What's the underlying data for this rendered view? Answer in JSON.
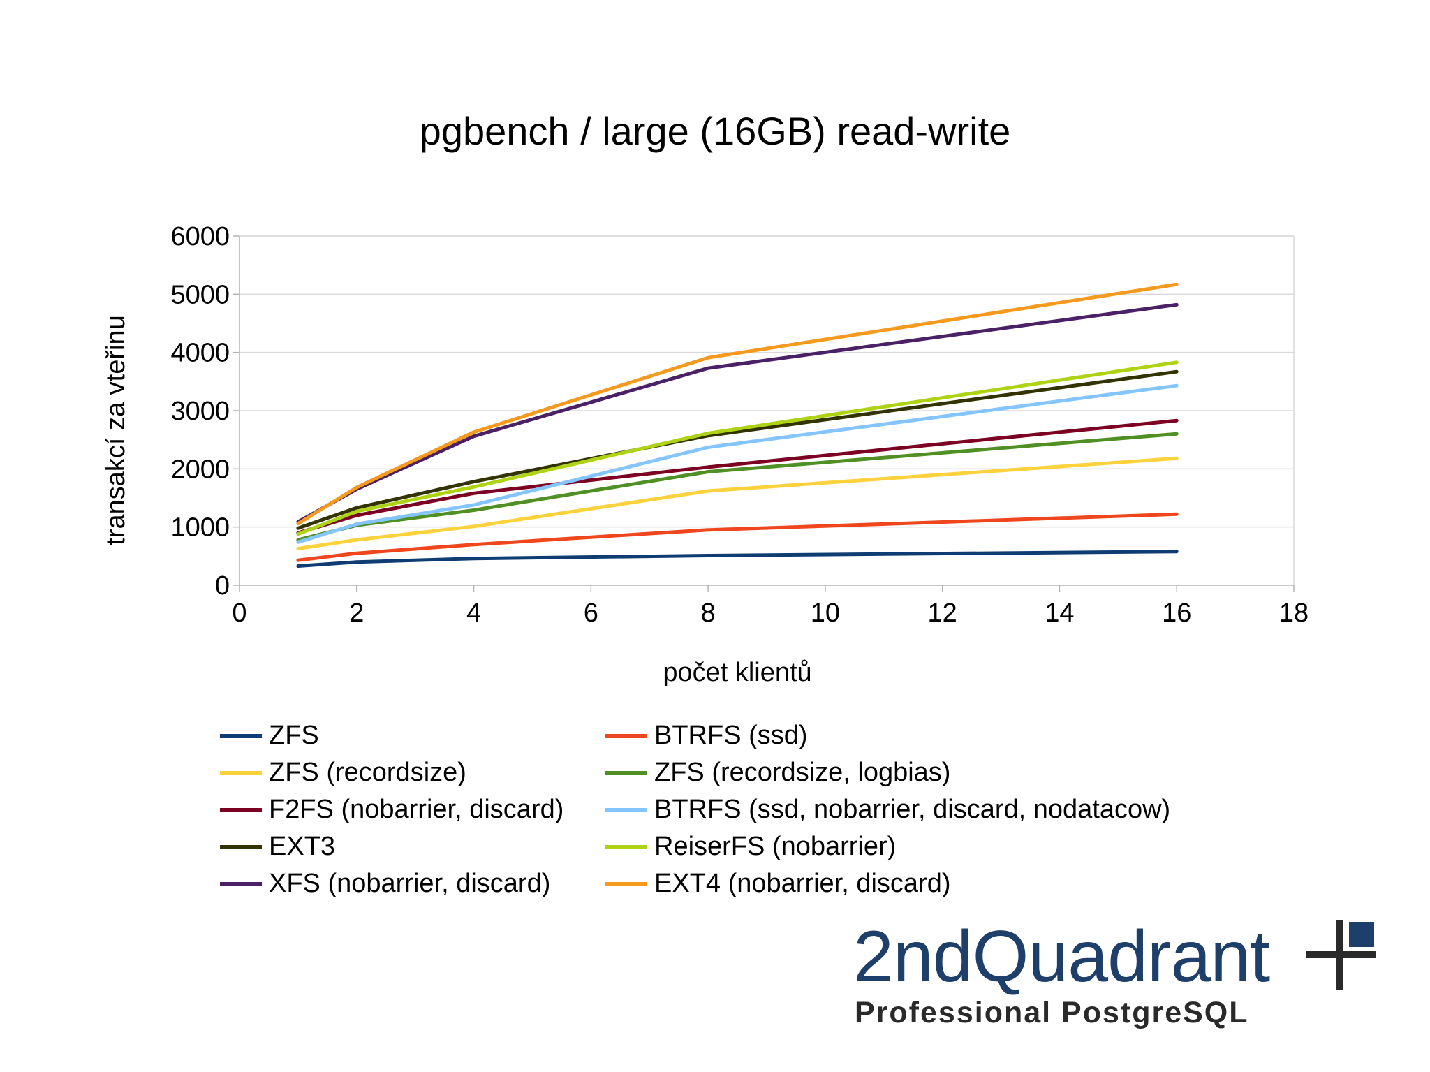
{
  "chart_data": {
    "type": "line",
    "title": "pgbench / large (16GB) read-write",
    "xlabel": "počet klientů",
    "ylabel": "transakcí za vteřinu",
    "xlim": [
      0,
      18
    ],
    "ylim": [
      0,
      6000
    ],
    "xticks": [
      0,
      2,
      4,
      6,
      8,
      10,
      12,
      14,
      16,
      18
    ],
    "yticks": [
      0,
      1000,
      2000,
      3000,
      4000,
      5000,
      6000
    ],
    "grid": true,
    "legend_position": "bottom",
    "x": [
      1,
      2,
      4,
      8,
      16
    ],
    "series": [
      {
        "name": "ZFS",
        "color": "#0f3d73",
        "values": [
          330,
          400,
          460,
          510,
          580
        ]
      },
      {
        "name": "BTRFS (ssd)",
        "color": "#f0461e",
        "values": [
          430,
          550,
          700,
          950,
          1220
        ]
      },
      {
        "name": "ZFS (recordsize)",
        "color": "#fcd23c",
        "values": [
          630,
          780,
          1010,
          1620,
          2180
        ]
      },
      {
        "name": "ZFS (recordsize, logbias)",
        "color": "#4f8f23",
        "values": [
          780,
          1030,
          1290,
          1950,
          2600
        ]
      },
      {
        "name": "F2FS (nobarrier, discard)",
        "color": "#7b0021",
        "values": [
          900,
          1200,
          1580,
          2030,
          2830
        ]
      },
      {
        "name": "BTRFS (ssd, nobarrier, discard, nodatacow)",
        "color": "#84c5ff",
        "values": [
          740,
          1050,
          1380,
          2370,
          3430
        ]
      },
      {
        "name": "EXT3",
        "color": "#333300",
        "values": [
          980,
          1330,
          1780,
          2570,
          3670
        ]
      },
      {
        "name": "ReiserFS (nobarrier)",
        "color": "#aed315",
        "values": [
          880,
          1270,
          1690,
          2610,
          3830
        ]
      },
      {
        "name": "XFS (nobarrier, discard)",
        "color": "#4a2167",
        "values": [
          1090,
          1650,
          2560,
          3730,
          4820
        ]
      },
      {
        "name": "EXT4 (nobarrier, discard)",
        "color": "#f59a1e",
        "values": [
          1060,
          1680,
          2630,
          3910,
          5170
        ]
      }
    ]
  },
  "logo": {
    "name": "2ndQuadrant",
    "tagline": "Professional PostgreSQL"
  }
}
